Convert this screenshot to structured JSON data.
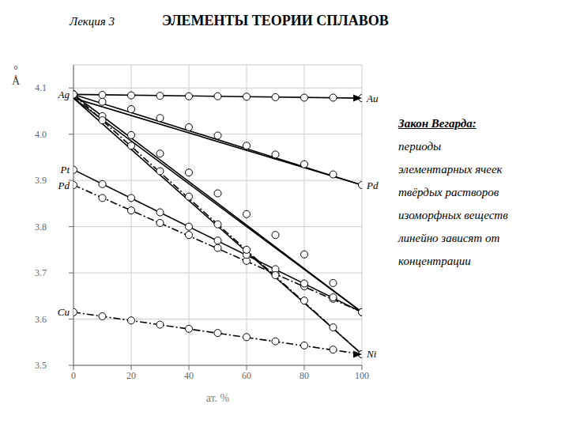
{
  "chart_data": {
    "type": "line",
    "title": "ЭЛЕМЕНТЫ ТЕОРИИ СПЛАВОВ",
    "subtitle": "Лекция 3",
    "xlabel": "ат. %",
    "ylabel": [
      "°",
      "Å"
    ],
    "xlim": [
      0,
      100
    ],
    "xticks": [
      0,
      20,
      40,
      60,
      80,
      100
    ],
    "ylim": [
      3.5,
      4.15
    ],
    "yticks": [
      3.5,
      3.6,
      3.7,
      3.8,
      3.9,
      {
        "value": 4.0,
        "label": "4.0"
      },
      4.1
    ],
    "grid": true,
    "series": [
      {
        "x": [
          0,
          100
        ],
        "values": [
          4.086,
          4.078
        ],
        "line_style": "solid",
        "color": "#000000",
        "marker": "circle",
        "marker_x": [
          0,
          10,
          20,
          30,
          40,
          50,
          60,
          70,
          80,
          90,
          100
        ],
        "marker_values": [
          4.086,
          4.085,
          4.084,
          4.083,
          4.082,
          4.082,
          4.081,
          4.08,
          4.079,
          4.079,
          4.078
        ]
      },
      {
        "x": [
          0,
          100
        ],
        "values": [
          4.086,
          3.89
        ],
        "line_style": "solid",
        "color": "#000000",
        "marker": "circle",
        "marker_x": [
          0,
          10,
          20,
          30,
          40,
          50,
          60,
          70,
          80,
          90,
          100
        ],
        "marker_values": [
          4.086,
          4.07,
          4.054,
          4.035,
          4.015,
          3.997,
          3.975,
          3.956,
          3.935,
          3.913,
          3.89
        ]
      },
      {
        "x": [
          0,
          100
        ],
        "values": [
          4.086,
          3.615
        ],
        "line_style": "solid",
        "color": "#000000",
        "marker": "circle",
        "marker_x": [
          0,
          10,
          20,
          30,
          40,
          50,
          60,
          70,
          80,
          90,
          100
        ],
        "marker_values": [
          4.086,
          4.039,
          3.998,
          3.958,
          3.917,
          3.872,
          3.827,
          3.782,
          3.74,
          3.678,
          3.615
        ]
      },
      {
        "x": [
          0,
          100
        ],
        "values": [
          4.078,
          3.615
        ],
        "line_style": "solid",
        "color": "#000000",
        "marker": "none"
      },
      {
        "x": [
          0,
          100
        ],
        "values": [
          4.078,
          3.524
        ],
        "line_style": "solid",
        "color": "#000000",
        "marker": "none"
      },
      {
        "x": [
          0,
          100
        ],
        "values": [
          4.078,
          3.89
        ],
        "line_style": "solid",
        "color": "#000000",
        "marker": "none"
      },
      {
        "x": [
          0,
          100
        ],
        "values": [
          3.89,
          3.615
        ],
        "line_style": "dashdot",
        "color": "#000000",
        "marker": "circle",
        "marker_x": [
          0,
          10,
          20,
          30,
          40,
          50,
          60,
          70,
          80,
          90,
          100
        ],
        "marker_values": [
          3.89,
          3.862,
          3.835,
          3.808,
          3.782,
          3.754,
          3.726,
          3.698,
          3.671,
          3.644,
          3.615
        ]
      },
      {
        "x": [
          0,
          100
        ],
        "values": [
          3.923,
          3.615
        ],
        "line_style": "solid",
        "color": "#000000",
        "marker": "circle",
        "marker_x": [
          0,
          10,
          20,
          30,
          40,
          50,
          60,
          70,
          80,
          90,
          100
        ],
        "marker_values": [
          3.923,
          3.892,
          3.862,
          3.831,
          3.8,
          3.77,
          3.739,
          3.708,
          3.677,
          3.647,
          3.615
        ]
      },
      {
        "x": [
          0,
          100
        ],
        "values": [
          3.615,
          3.524
        ],
        "line_style": "dashdot",
        "color": "#000000",
        "marker": "circle",
        "marker_x": [
          0,
          10,
          20,
          30,
          40,
          50,
          60,
          70,
          80,
          90,
          100
        ],
        "marker_values": [
          3.615,
          3.606,
          3.597,
          3.588,
          3.579,
          3.57,
          3.561,
          3.552,
          3.543,
          3.534,
          3.524
        ]
      },
      {
        "x": [
          0,
          100
        ],
        "values": [
          4.086,
          3.524
        ],
        "line_style": "dashdot",
        "color": "#000000",
        "marker": "circle",
        "marker_x": [
          0,
          10,
          20,
          30,
          40,
          50,
          60,
          70,
          80,
          90,
          100
        ],
        "marker_values": [
          4.086,
          4.03,
          3.975,
          3.92,
          3.865,
          3.805,
          3.75,
          3.695,
          3.64,
          3.582,
          3.524
        ]
      }
    ],
    "annotations": [
      {
        "text": "Ag",
        "x": 0,
        "y": 4.086
      },
      {
        "text": "Pt",
        "x": 0,
        "y": 3.923
      },
      {
        "text": "Pd",
        "x": 0,
        "y": 3.89
      },
      {
        "text": "Cu",
        "x": 0,
        "y": 3.615
      },
      {
        "text": "Au",
        "x": 100,
        "y": 4.078
      },
      {
        "text": "Pd",
        "x": 100,
        "y": 3.89
      },
      {
        "text": "Ni",
        "x": 100,
        "y": 3.524
      }
    ],
    "arrows": [
      {
        "x": 100,
        "y": 4.078
      },
      {
        "x": 100,
        "y": 3.524
      }
    ],
    "note": [
      "Закон Вегарда:",
      "периоды",
      "элементарных ячеек",
      "твёрдых растворов",
      "изоморфных веществ",
      "линейно зависят от",
      "концентрации"
    ]
  }
}
